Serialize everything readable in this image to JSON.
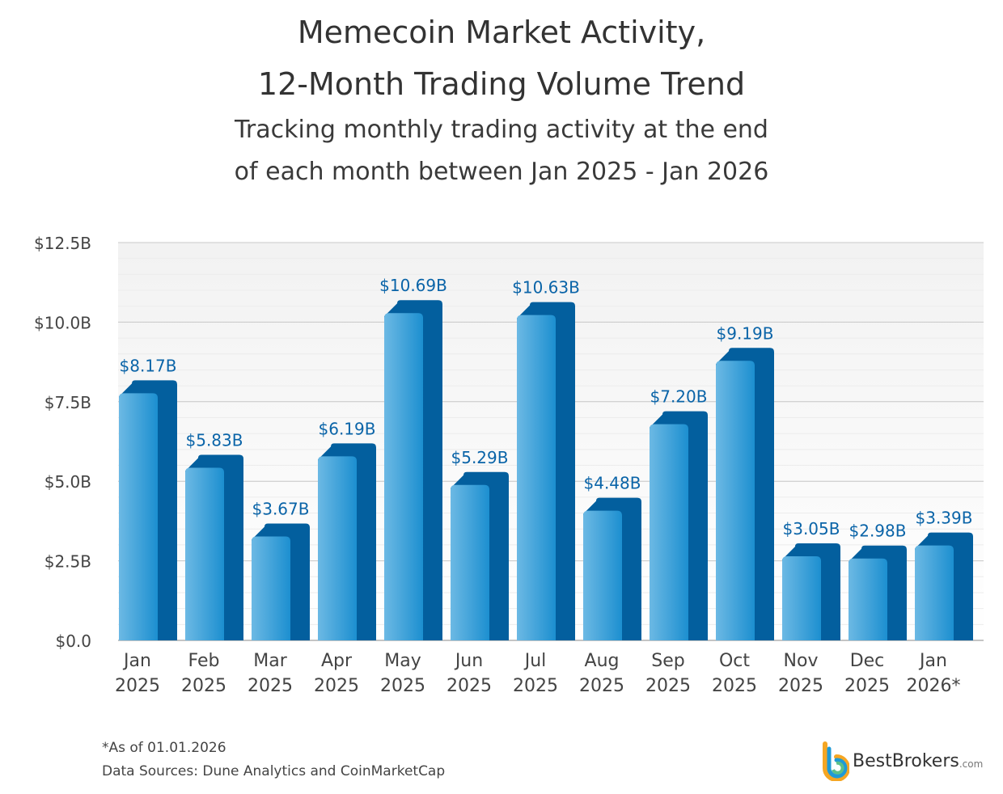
{
  "chart_data": {
    "type": "bar",
    "title": "Memecoin Market Activity,",
    "title_line2": "12-Month Trading Volume Trend",
    "subtitle_line1": "Tracking monthly trading activity at the end",
    "subtitle_line2": "of each month between Jan 2025 - Jan 2026",
    "categories": [
      [
        "Jan",
        "2025"
      ],
      [
        "Feb",
        "2025"
      ],
      [
        "Mar",
        "2025"
      ],
      [
        "Apr",
        "2025"
      ],
      [
        "May",
        "2025"
      ],
      [
        "Jun",
        "2025"
      ],
      [
        "Jul",
        "2025"
      ],
      [
        "Aug",
        "2025"
      ],
      [
        "Sep",
        "2025"
      ],
      [
        "Oct",
        "2025"
      ],
      [
        "Nov",
        "2025"
      ],
      [
        "Dec",
        "2025"
      ],
      [
        "Jan",
        "2026*"
      ]
    ],
    "values": [
      8.17,
      5.83,
      3.67,
      6.19,
      10.69,
      5.29,
      10.63,
      4.48,
      7.2,
      9.19,
      3.05,
      2.98,
      3.39
    ],
    "data_labels": [
      "$8.17B",
      "$5.83B",
      "$3.67B",
      "$6.19B",
      "$10.69B",
      "$5.29B",
      "$10.63B",
      "$4.48B",
      "$7.20B",
      "$9.19B",
      "$3.05B",
      "$2.98B",
      "$3.39B"
    ],
    "ylim": [
      0,
      12.5
    ],
    "yticks": [
      0,
      2.5,
      5,
      7.5,
      10,
      12.5
    ],
    "ytick_labels": [
      "$0.0",
      "$2.5B",
      "$5.0B",
      "$7.5B",
      "$10.0B",
      "$12.5B"
    ],
    "xlabel": "",
    "ylabel": "",
    "grid": true,
    "colors": {
      "bar_front_light": "#6cb9e4",
      "bar_front_dark": "#1c8fd0",
      "bar_side": "#035f9e",
      "label": "#0a64a8"
    }
  },
  "footnote": "*As of 01.01.2026",
  "sources": "Data Sources: Dune Analytics and CoinMarketCap",
  "logo": {
    "name": "BestBrokers",
    "suffix": ".com"
  }
}
